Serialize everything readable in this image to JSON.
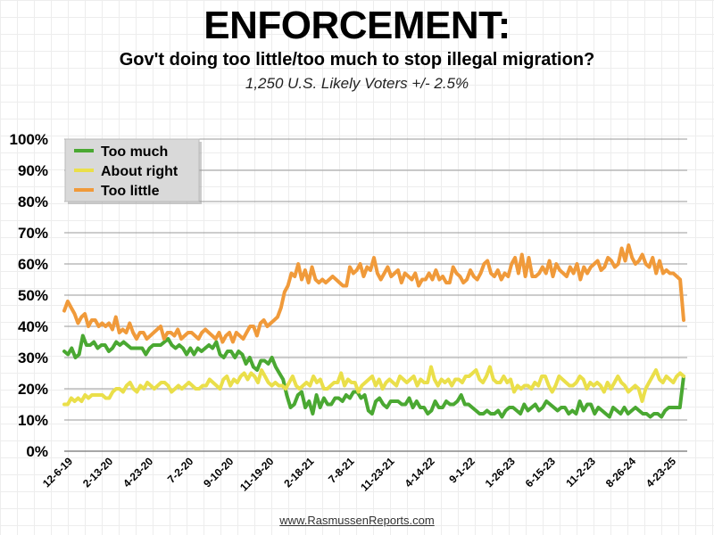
{
  "header": {
    "title": "ENFORCEMENT:",
    "subtitle": "Gov't doing too little/too much to stop illegal migration?",
    "subsubtitle": "1,250 U.S. Likely Voters +/- 2.5%"
  },
  "footer": {
    "source": "www.RasmussenReports.com"
  },
  "chart_data": {
    "type": "line",
    "title": "ENFORCEMENT:",
    "ylim": [
      0,
      100
    ],
    "yticks": [
      "0%",
      "10%",
      "20%",
      "30%",
      "40%",
      "50%",
      "60%",
      "70%",
      "80%",
      "90%",
      "100%"
    ],
    "xtick_labels": [
      "12-6-19",
      "2-13-20",
      "4-23-20",
      "7-2-20",
      "9-10-20",
      "11-19-20",
      "2-18-21",
      "7-8-21",
      "11-23-21",
      "4-14-22",
      "9-1-22",
      "1-26-23",
      "6-15-23",
      "11-2-23",
      "8-26-24",
      "4-23-25"
    ],
    "legend_position": "top-left",
    "grid": true,
    "series": [
      {
        "name": "Too much",
        "color": "#4aa832",
        "values": [
          32,
          31,
          33,
          30,
          31,
          37,
          34,
          34,
          35,
          33,
          34,
          34,
          32,
          33,
          35,
          34,
          35,
          34,
          33,
          33,
          33,
          33,
          31,
          33,
          34,
          34,
          34,
          35,
          36,
          34,
          33,
          34,
          33,
          31,
          33,
          31,
          33,
          32,
          33,
          34,
          33,
          35,
          31,
          30,
          32,
          32,
          30,
          32,
          31,
          28,
          30,
          27,
          26,
          29,
          29,
          28,
          30,
          27,
          25,
          23,
          18,
          14,
          15,
          18,
          19,
          14,
          16,
          12,
          18,
          14,
          17,
          15,
          15,
          17,
          17,
          16,
          18,
          17,
          19,
          19,
          17,
          18,
          13,
          12,
          16,
          17,
          15,
          14,
          16,
          16,
          16,
          15,
          15,
          17,
          14,
          16,
          14,
          14,
          12,
          13,
          16,
          14,
          14,
          16,
          15,
          15,
          16,
          18,
          15,
          15,
          14,
          13,
          12,
          12,
          13,
          12,
          12,
          13,
          11,
          13,
          14,
          14,
          13,
          12,
          15,
          13,
          14,
          15,
          13,
          14,
          16,
          15,
          14,
          13,
          14,
          14,
          12,
          13,
          12,
          16,
          13,
          15,
          15,
          12,
          14,
          13,
          12,
          11,
          14,
          13,
          12,
          14,
          12,
          13,
          14,
          13,
          12,
          12,
          11,
          12,
          12,
          11,
          13,
          14,
          14,
          14,
          14,
          24
        ]
      },
      {
        "name": "About right",
        "color": "#eadf4a",
        "values": [
          15,
          15,
          17,
          16,
          17,
          16,
          18,
          17,
          18,
          18,
          18,
          18,
          17,
          17,
          19,
          20,
          20,
          19,
          21,
          22,
          20,
          19,
          21,
          20,
          22,
          21,
          20,
          21,
          22,
          22,
          21,
          19,
          20,
          21,
          20,
          21,
          22,
          21,
          20,
          20,
          21,
          21,
          23,
          22,
          21,
          20,
          23,
          24,
          21,
          23,
          22,
          24,
          25,
          23,
          25,
          24,
          22,
          26,
          24,
          22,
          21,
          22,
          21,
          21,
          20,
          22,
          24,
          21,
          20,
          21,
          22,
          21,
          24,
          22,
          23,
          20,
          20,
          21,
          22,
          22,
          25,
          21,
          23,
          22,
          22,
          19,
          21,
          22,
          23,
          24,
          21,
          23,
          20,
          22,
          23,
          22,
          21,
          24,
          23,
          22,
          23,
          24,
          21,
          23,
          22,
          22,
          27,
          23,
          21,
          23,
          22,
          23,
          21,
          23,
          23,
          22,
          24,
          24,
          25,
          26,
          23,
          22,
          24,
          27,
          23,
          22,
          22,
          24,
          22,
          23,
          19,
          21,
          20,
          21,
          21,
          20,
          22,
          21,
          24,
          24,
          21,
          19,
          21,
          24,
          23,
          22,
          21,
          21,
          22,
          24,
          23,
          20,
          22,
          21,
          22,
          21,
          19,
          22,
          20,
          22,
          24,
          22,
          21,
          19,
          20,
          21,
          20,
          16,
          20,
          22,
          24,
          26,
          23,
          22,
          24,
          23,
          22,
          24,
          25,
          24
        ]
      },
      {
        "name": "Too little",
        "color": "#f09a3a",
        "values": [
          45,
          48,
          46,
          44,
          41,
          43,
          44,
          40,
          42,
          42,
          40,
          41,
          40,
          41,
          39,
          43,
          38,
          39,
          38,
          41,
          38,
          36,
          38,
          38,
          36,
          37,
          38,
          39,
          40,
          36,
          38,
          38,
          37,
          39,
          36,
          37,
          38,
          38,
          37,
          36,
          38,
          39,
          38,
          37,
          36,
          38,
          35,
          37,
          38,
          35,
          38,
          37,
          36,
          38,
          40,
          40,
          37,
          41,
          42,
          40,
          41,
          42,
          43,
          46,
          51,
          53,
          57,
          56,
          60,
          55,
          58,
          54,
          59,
          55,
          54,
          55,
          54,
          55,
          56,
          55,
          54,
          53,
          53,
          59,
          57,
          58,
          60,
          56,
          59,
          58,
          62,
          57,
          55,
          57,
          59,
          56,
          57,
          58,
          54,
          57,
          56,
          55,
          57,
          53,
          55,
          55,
          57,
          55,
          58,
          55,
          56,
          54,
          54,
          59,
          57,
          56,
          54,
          55,
          58,
          56,
          55,
          57,
          60,
          61,
          57,
          56,
          58,
          55,
          57,
          56,
          60,
          62,
          57,
          63,
          56,
          62,
          56,
          56,
          57,
          59,
          57,
          61,
          56,
          60,
          58,
          57,
          56,
          59,
          57,
          60,
          55,
          59,
          57,
          59,
          60,
          61,
          58,
          59,
          62,
          61,
          59,
          60,
          65,
          61,
          66,
          62,
          60,
          61,
          63,
          60,
          59,
          62,
          57,
          61,
          57,
          58,
          57,
          57,
          56,
          55,
          42
        ]
      }
    ]
  }
}
